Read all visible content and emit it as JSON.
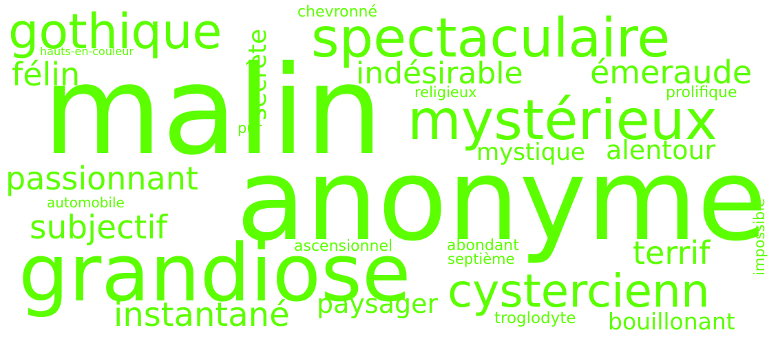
{
  "colors": {
    "background": "#ffffff",
    "word": "#5cff00"
  },
  "words": {
    "malin": "malin",
    "anonyme": "anonyme",
    "grandiose": "grandiose",
    "spectaculaire": "spectaculaire",
    "mysterieux": "mystérieux",
    "gothique": "gothique",
    "cystercienn": "cystercienn",
    "indesirable": "indésirable",
    "emeraude": "émeraude",
    "felin": "félin",
    "passionnant": "passionnant",
    "subjectif": "subjectif",
    "instantane": "instantané",
    "terrif": "terrif",
    "paysager": "paysager",
    "bouillonant": "bouillonant",
    "mystique": "mystique",
    "alentour": "alentour",
    "secrete": "secrète",
    "chevronne": "chevronné",
    "hauts_en_couleur": "hauts-en-couleur",
    "religieux": "religieux",
    "prolifique": "prolifique",
    "pur": "pur",
    "automobile": "automobile",
    "ascensionnel": "ascensionnel",
    "abondant": "abondant",
    "septieme": "septième",
    "troglodyte": "troglodyte",
    "impossible": "impossible"
  }
}
